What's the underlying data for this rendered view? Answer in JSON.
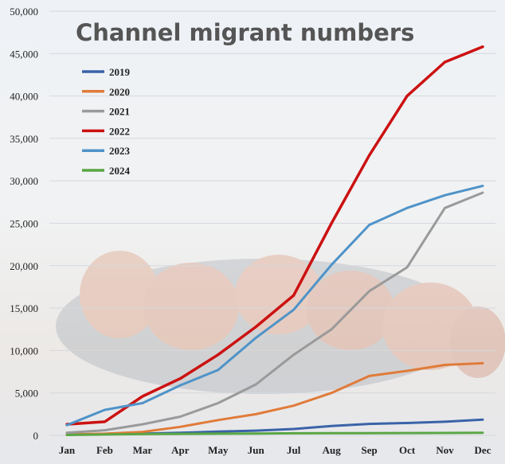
{
  "chart_data": {
    "type": "line",
    "title": "Channel migrant numbers",
    "xlabel": "",
    "ylabel": "",
    "categories": [
      "Jan",
      "Feb",
      "Mar",
      "Apr",
      "May",
      "Jun",
      "Jul",
      "Aug",
      "Sep",
      "Oct",
      "Nov",
      "Dec"
    ],
    "ylim": [
      0,
      50000
    ],
    "yticks": [
      "0",
      "5,000",
      "10,000",
      "15,000",
      "20,000",
      "25,000",
      "30,000",
      "35,000",
      "40,000",
      "45,000",
      "50,000"
    ],
    "ytick_values": [
      0,
      5000,
      10000,
      15000,
      20000,
      25000,
      30000,
      35000,
      40000,
      45000,
      50000
    ],
    "grid": true,
    "legend_position": "top-left",
    "series": [
      {
        "name": "2019",
        "color": "#3a63a8",
        "values": [
          100,
          150,
          200,
          300,
          450,
          550,
          750,
          1100,
          1350,
          1450,
          1600,
          1850
        ]
      },
      {
        "name": "2020",
        "color": "#e07b39",
        "values": [
          100,
          200,
          400,
          1000,
          1800,
          2500,
          3500,
          5000,
          7000,
          7600,
          8300,
          8500
        ]
      },
      {
        "name": "2021",
        "color": "#9a9a9a",
        "values": [
          300,
          600,
          1300,
          2200,
          3800,
          6000,
          9500,
          12500,
          17000,
          19800,
          26800,
          28600
        ]
      },
      {
        "name": "2022",
        "color": "#cc1111",
        "values": [
          1300,
          1600,
          4600,
          6700,
          9500,
          12800,
          16500,
          25000,
          33000,
          40000,
          44000,
          45800
        ]
      },
      {
        "name": "2023",
        "color": "#4f93c8",
        "values": [
          1200,
          3000,
          3800,
          5900,
          7700,
          11500,
          14800,
          20100,
          24800,
          26800,
          28300,
          29400
        ]
      },
      {
        "name": "2024",
        "color": "#5aa645",
        "values": [
          50,
          100,
          150,
          180,
          200,
          220,
          240,
          250,
          260,
          270,
          280,
          300
        ]
      }
    ]
  }
}
